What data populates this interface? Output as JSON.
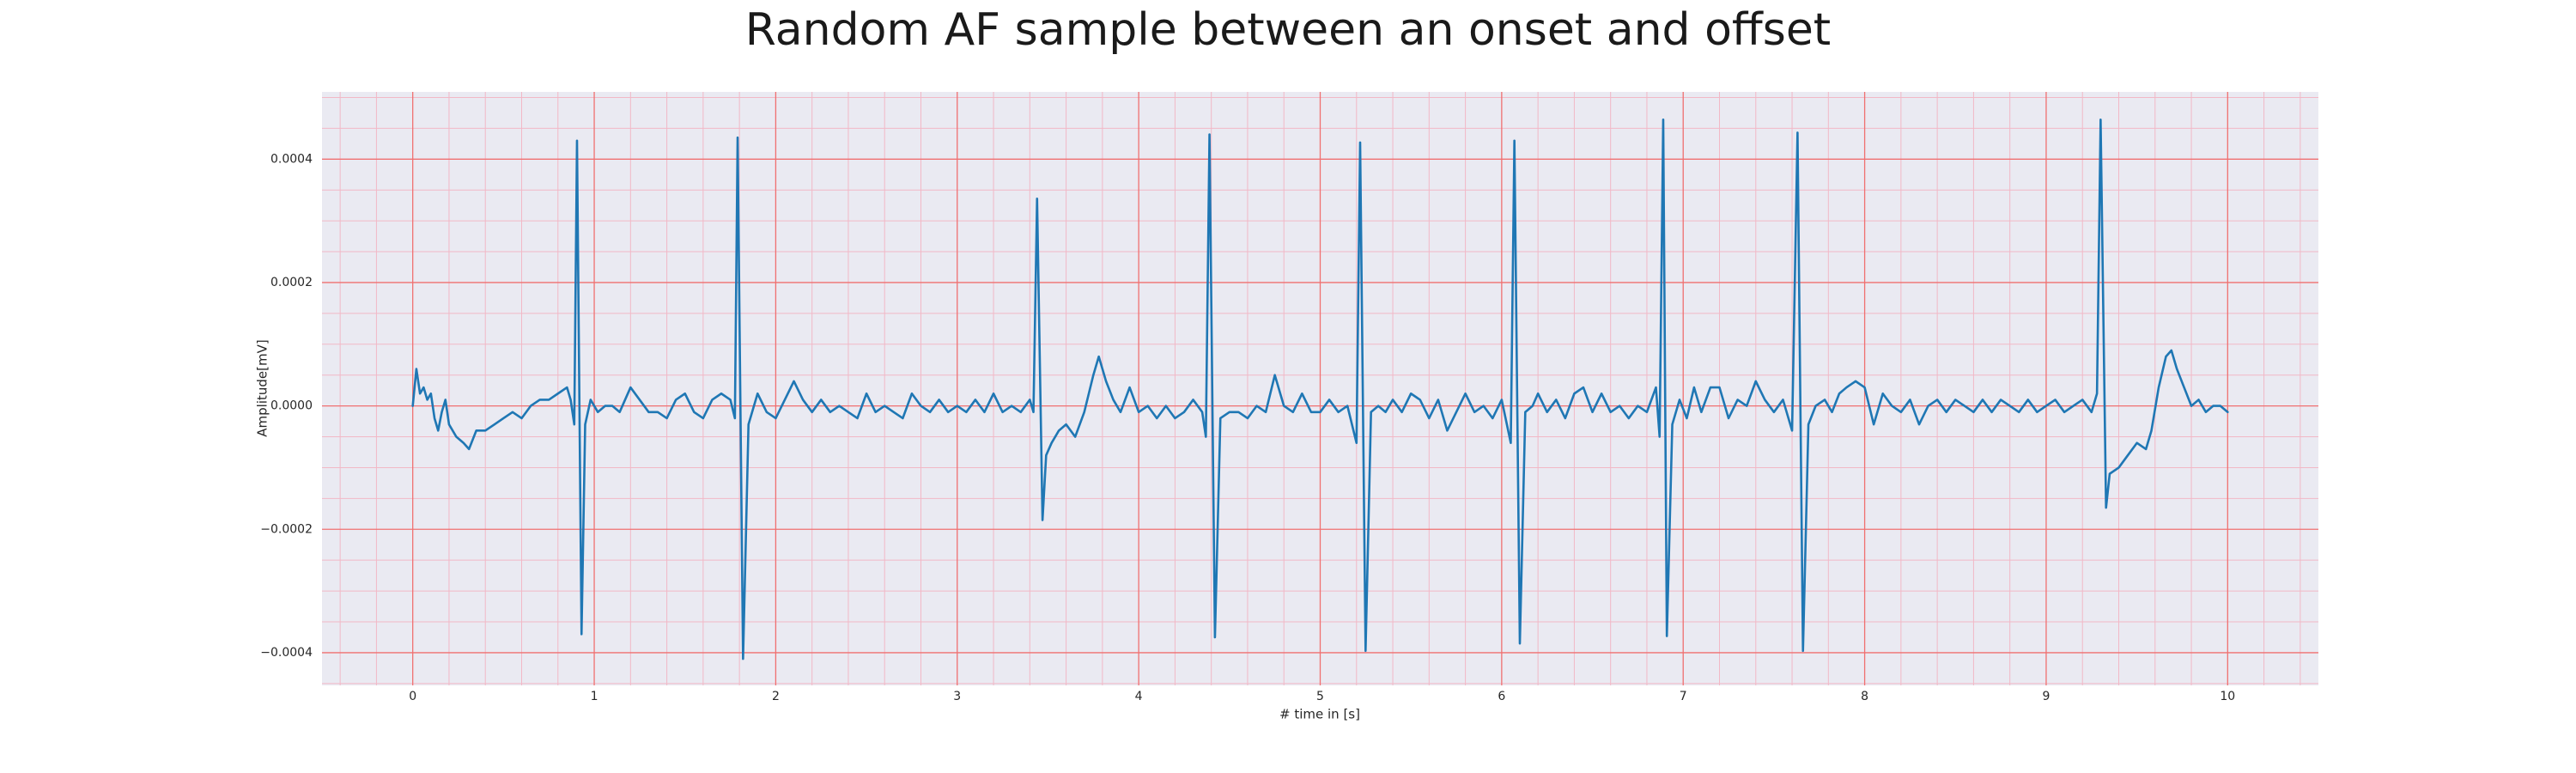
{
  "chart_data": {
    "type": "line",
    "title": "Random AF sample between an onset and offset",
    "xlabel": "# time in [s]",
    "ylabel": "Amplitude[mV]",
    "color": "#1f77b4",
    "grid": true,
    "xlim": [
      -0.5,
      10.5
    ],
    "ylim": [
      -0.000453,
      0.000509
    ],
    "xticks": [
      0,
      1,
      2,
      3,
      4,
      5,
      6,
      7,
      8,
      9,
      10
    ],
    "yticks": [
      {
        "value": -0.0004,
        "label": "−0.0004"
      },
      {
        "value": -0.0002,
        "label": "−0.0002"
      },
      {
        "value": 0,
        "label": "0.0000"
      },
      0.0002,
      0.0004
    ],
    "xticks_minor": [
      -0.4,
      -0.2,
      0.2,
      0.4,
      0.6,
      0.8,
      1.2,
      1.4,
      1.6,
      1.8,
      2.2,
      2.4,
      2.6,
      2.8,
      3.2,
      3.4,
      3.6,
      3.8,
      4.2,
      4.4,
      4.6,
      4.8,
      5.2,
      5.4,
      5.6,
      5.8,
      6.2,
      6.4,
      6.6,
      6.8,
      7.2,
      7.4,
      7.6,
      7.8,
      8.2,
      8.4,
      8.6,
      8.8,
      9.2,
      9.4,
      9.6,
      9.8,
      10.2,
      10.4
    ],
    "yticks_minor": [
      -0.00045,
      -0.00035,
      -0.0003,
      -0.00025,
      -0.00015,
      -0.0001,
      -5e-05,
      5e-05,
      0.0001,
      0.00015,
      0.00025,
      0.0003,
      0.00035,
      0.00045,
      0.0005
    ],
    "x": [
      0,
      0.02,
      0.04,
      0.06,
      0.08,
      0.1,
      0.12,
      0.14,
      0.16,
      0.18,
      0.2,
      0.24,
      0.28,
      0.31,
      0.35,
      0.4,
      0.45,
      0.5,
      0.55,
      0.6,
      0.65,
      0.7,
      0.75,
      0.8,
      0.85,
      0.87,
      0.89,
      0.905,
      0.93,
      0.95,
      0.98,
      1.02,
      1.06,
      1.1,
      1.14,
      1.2,
      1.25,
      1.3,
      1.35,
      1.4,
      1.45,
      1.5,
      1.55,
      1.6,
      1.65,
      1.7,
      1.75,
      1.775,
      1.79,
      1.82,
      1.85,
      1.9,
      1.95,
      2,
      2.05,
      2.1,
      2.15,
      2.2,
      2.25,
      2.3,
      2.35,
      2.4,
      2.45,
      2.5,
      2.55,
      2.6,
      2.65,
      2.7,
      2.75,
      2.8,
      2.85,
      2.9,
      2.95,
      3,
      3.05,
      3.1,
      3.15,
      3.2,
      3.25,
      3.3,
      3.35,
      3.4,
      3.42,
      3.44,
      3.47,
      3.49,
      3.52,
      3.56,
      3.6,
      3.65,
      3.7,
      3.75,
      3.78,
      3.82,
      3.86,
      3.9,
      3.95,
      4,
      4.05,
      4.1,
      4.15,
      4.2,
      4.25,
      4.3,
      4.35,
      4.37,
      4.39,
      4.42,
      4.45,
      4.5,
      4.55,
      4.6,
      4.65,
      4.7,
      4.75,
      4.8,
      4.85,
      4.9,
      4.95,
      5,
      5.05,
      5.1,
      5.15,
      5.2,
      5.22,
      5.25,
      5.28,
      5.32,
      5.36,
      5.4,
      5.45,
      5.5,
      5.55,
      5.6,
      5.65,
      5.7,
      5.75,
      5.8,
      5.85,
      5.9,
      5.95,
      6,
      6.05,
      6.07,
      6.1,
      6.13,
      6.17,
      6.2,
      6.25,
      6.3,
      6.35,
      6.4,
      6.45,
      6.5,
      6.55,
      6.6,
      6.65,
      6.7,
      6.75,
      6.8,
      6.85,
      6.87,
      6.89,
      6.91,
      6.94,
      6.98,
      7.02,
      7.06,
      7.1,
      7.15,
      7.2,
      7.25,
      7.3,
      7.35,
      7.4,
      7.45,
      7.5,
      7.55,
      7.6,
      7.63,
      7.66,
      7.69,
      7.73,
      7.78,
      7.82,
      7.86,
      7.9,
      7.95,
      8,
      8.05,
      8.1,
      8.15,
      8.2,
      8.25,
      8.3,
      8.35,
      8.4,
      8.45,
      8.5,
      8.55,
      8.6,
      8.65,
      8.7,
      8.75,
      8.8,
      8.85,
      8.9,
      8.95,
      9,
      9.05,
      9.1,
      9.15,
      9.2,
      9.25,
      9.28,
      9.3,
      9.33,
      9.35,
      9.4,
      9.45,
      9.5,
      9.55,
      9.58,
      9.62,
      9.66,
      9.69,
      9.72,
      9.76,
      9.8,
      9.84,
      9.88,
      9.92,
      9.96,
      10
    ],
    "values": [
      0,
      6e-05,
      2e-05,
      3e-05,
      1e-05,
      2e-05,
      -2e-05,
      -4e-05,
      -1e-05,
      1e-05,
      -3e-05,
      -5e-05,
      -6e-05,
      -7e-05,
      -4e-05,
      -4e-05,
      -3e-05,
      -2e-05,
      -1e-05,
      -2e-05,
      0,
      1e-05,
      1e-05,
      2e-05,
      3e-05,
      1e-05,
      -3e-05,
      0.00043,
      -0.00037,
      -3e-05,
      1e-05,
      -1e-05,
      0,
      0,
      -1e-05,
      3e-05,
      1e-05,
      -1e-05,
      -1e-05,
      -2e-05,
      1e-05,
      2e-05,
      -1e-05,
      -2e-05,
      1e-05,
      2e-05,
      1e-05,
      -2e-05,
      0.000435,
      -0.00041,
      -3e-05,
      2e-05,
      -1e-05,
      -2e-05,
      1e-05,
      4e-05,
      1e-05,
      -1e-05,
      1e-05,
      -1e-05,
      0,
      -1e-05,
      -2e-05,
      2e-05,
      -1e-05,
      0,
      -1e-05,
      -2e-05,
      2e-05,
      0,
      -1e-05,
      1e-05,
      -1e-05,
      0,
      -1e-05,
      1e-05,
      -1e-05,
      2e-05,
      -1e-05,
      0,
      -1e-05,
      1e-05,
      -1e-05,
      0.000336,
      -0.000185,
      -8e-05,
      -6e-05,
      -4e-05,
      -3e-05,
      -5e-05,
      -1e-05,
      5e-05,
      8e-05,
      4e-05,
      1e-05,
      -1e-05,
      3e-05,
      -1e-05,
      0,
      -2e-05,
      0,
      -2e-05,
      -1e-05,
      1e-05,
      -1e-05,
      -5e-05,
      0.00044,
      -0.000375,
      -2e-05,
      -1e-05,
      -1e-05,
      -2e-05,
      0,
      -1e-05,
      5e-05,
      0,
      -1e-05,
      2e-05,
      -1e-05,
      -1e-05,
      1e-05,
      -1e-05,
      0,
      -6e-05,
      0.000427,
      -0.000397,
      -1e-05,
      0,
      -1e-05,
      1e-05,
      -1e-05,
      2e-05,
      1e-05,
      -2e-05,
      1e-05,
      -4e-05,
      -1e-05,
      2e-05,
      -1e-05,
      0,
      -2e-05,
      1e-05,
      -6e-05,
      0.00043,
      -0.000385,
      -1e-05,
      0,
      2e-05,
      -1e-05,
      1e-05,
      -2e-05,
      2e-05,
      3e-05,
      -1e-05,
      2e-05,
      -1e-05,
      0,
      -2e-05,
      0,
      -1e-05,
      3e-05,
      -5e-05,
      0.000464,
      -0.000373,
      -3e-05,
      1e-05,
      -2e-05,
      3e-05,
      -1e-05,
      3e-05,
      3e-05,
      -2e-05,
      1e-05,
      0,
      4e-05,
      1e-05,
      -1e-05,
      1e-05,
      -4e-05,
      0.000443,
      -0.000397,
      -3e-05,
      0,
      1e-05,
      -1e-05,
      2e-05,
      3e-05,
      4e-05,
      3e-05,
      -3e-05,
      2e-05,
      0,
      -1e-05,
      1e-05,
      -3e-05,
      0,
      1e-05,
      -1e-05,
      1e-05,
      0,
      -1e-05,
      1e-05,
      -1e-05,
      1e-05,
      0,
      -1e-05,
      1e-05,
      -1e-05,
      0,
      1e-05,
      -1e-05,
      0,
      1e-05,
      -1e-05,
      2e-05,
      0.000464,
      -0.000165,
      -0.00011,
      -0.0001,
      -8e-05,
      -6e-05,
      -7e-05,
      -4e-05,
      3e-05,
      8e-05,
      9e-05,
      6e-05,
      3e-05,
      0,
      1e-05,
      -1e-05,
      0,
      0,
      -1e-05
    ]
  }
}
